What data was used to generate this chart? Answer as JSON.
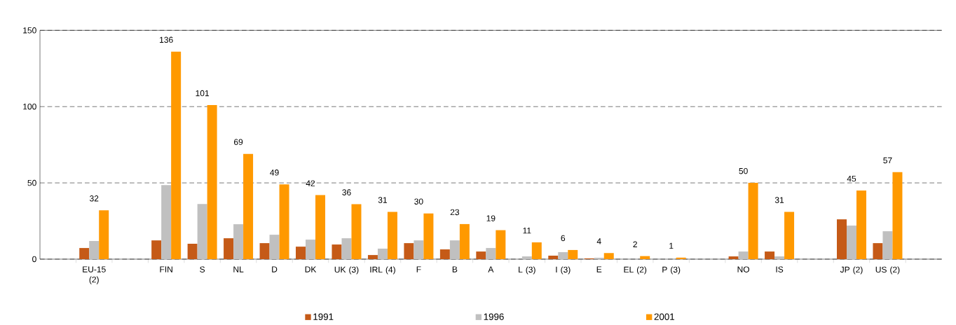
{
  "chart_data": {
    "type": "bar",
    "categories": [
      null,
      "EU-15 (2)",
      null,
      "FIN",
      "S",
      "NL",
      "D",
      "DK",
      "UK (3)",
      "IRL (4)",
      "F",
      "B",
      "A",
      "L (3)",
      "I (3)",
      "E",
      "EL (2)",
      "P (3)",
      null,
      "NO",
      "IS",
      null,
      "JP (2)",
      "US (2)",
      null
    ],
    "series": [
      {
        "name": "1991",
        "color": "#c55a17",
        "values": [
          null,
          7.3,
          null,
          12.3,
          10.1,
          13.7,
          10.5,
          8.2,
          9.6,
          2.7,
          10.5,
          6.4,
          5.0,
          null,
          2.3,
          0.5,
          null,
          null,
          null,
          1.8,
          5.0,
          null,
          26.1,
          10.5,
          null
        ]
      },
      {
        "name": "1996",
        "color": "#c0c0c0",
        "values": [
          null,
          11.9,
          null,
          48.5,
          36.1,
          22.9,
          16.0,
          12.8,
          13.7,
          6.9,
          12.3,
          12.3,
          7.3,
          1.8,
          4.6,
          0.9,
          null,
          null,
          null,
          5.0,
          1.8,
          null,
          22.0,
          18.3,
          null
        ]
      },
      {
        "name": "2001",
        "color": "#ff9900",
        "values": [
          null,
          32,
          null,
          136,
          101,
          69,
          49,
          42,
          36,
          31,
          30,
          23,
          19,
          11,
          6,
          4,
          2,
          1,
          null,
          50,
          31,
          null,
          45,
          57,
          null
        ],
        "value_labels": [
          null,
          "32",
          null,
          "136",
          "101",
          "69",
          "49",
          "42",
          "36",
          "31",
          "30",
          "23",
          "19",
          "11",
          "6",
          "4",
          "2",
          "1",
          null,
          "50",
          "31",
          null,
          "45",
          "57",
          null
        ]
      }
    ],
    "ylim": [
      0,
      150
    ],
    "yticks": [
      0,
      50,
      100,
      150
    ],
    "grid": "y",
    "legend": "bottom"
  }
}
